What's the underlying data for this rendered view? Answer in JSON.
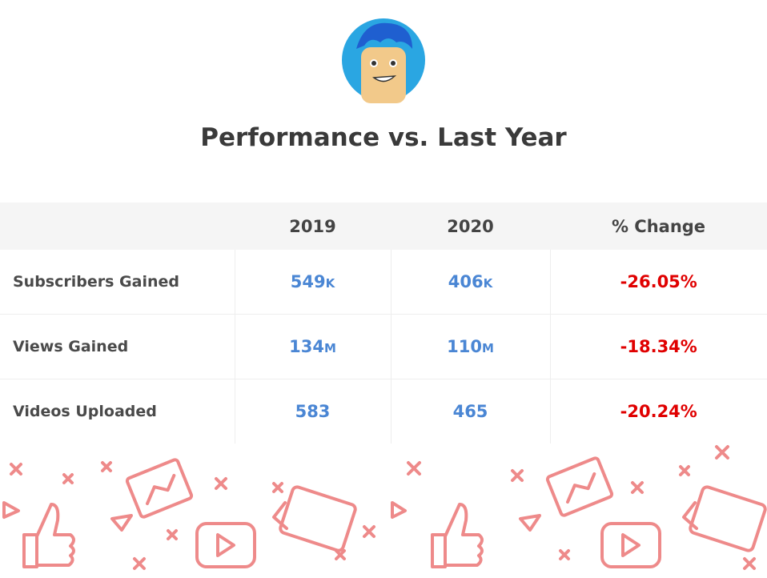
{
  "header": {
    "title": "Performance vs. Last Year"
  },
  "table": {
    "columns": [
      "2019",
      "2020",
      "% Change"
    ],
    "rows": [
      {
        "label": "Subscribers Gained",
        "v2019": {
          "number": "549",
          "unit": "K"
        },
        "v2020": {
          "number": "406",
          "unit": "K"
        },
        "change": "-26.05%"
      },
      {
        "label": "Views Gained",
        "v2019": {
          "number": "134",
          "unit": "M"
        },
        "v2020": {
          "number": "110",
          "unit": "M"
        },
        "change": "-18.34%"
      },
      {
        "label": "Videos Uploaded",
        "v2019": {
          "number": "583",
          "unit": ""
        },
        "v2020": {
          "number": "465",
          "unit": ""
        },
        "change": "-20.24%"
      }
    ]
  }
}
